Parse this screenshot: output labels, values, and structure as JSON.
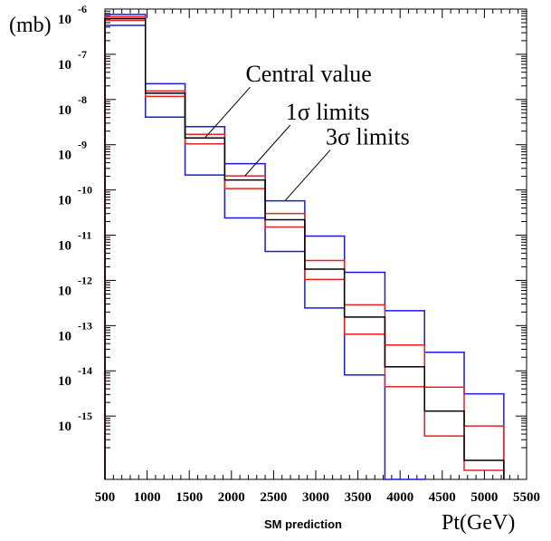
{
  "chart_data": {
    "type": "line",
    "subtype": "step-histogram",
    "title": "",
    "subtitle": "SM prediction",
    "xlabel": "Pt(GeV)",
    "ylabel": "(mb)",
    "xlim": [
      500,
      5500
    ],
    "ylim": [
      -16.4,
      -6
    ],
    "y_scale": "log10",
    "x_ticks": [
      500,
      1000,
      1500,
      2000,
      2500,
      3000,
      3500,
      4000,
      4500,
      5000,
      5500
    ],
    "y_ticks": [
      {
        "base": "10",
        "exp": "-6",
        "value": -6
      },
      {
        "base": "10",
        "exp": "-7",
        "value": -7
      },
      {
        "base": "10",
        "exp": "-8",
        "value": -8
      },
      {
        "base": "10",
        "exp": "-9",
        "value": -9
      },
      {
        "base": "10",
        "exp": "-10",
        "value": -10
      },
      {
        "base": "10",
        "exp": "-11",
        "value": -11
      },
      {
        "base": "10",
        "exp": "-12",
        "value": -12
      },
      {
        "base": "10",
        "exp": "-13",
        "value": -13
      },
      {
        "base": "10",
        "exp": "-14",
        "value": -14
      },
      {
        "base": "10",
        "exp": "-15",
        "value": -15
      }
    ],
    "bin_edges": [
      500,
      980,
      1450,
      1920,
      2400,
      2870,
      3340,
      3820,
      4290,
      4760,
      5230
    ],
    "series": [
      {
        "name": "Central value",
        "color": "#000000",
        "values": [
          -6.21,
          -7.86,
          -8.85,
          -9.78,
          -10.66,
          -11.75,
          -12.81,
          -13.91,
          -14.89,
          -15.98
        ]
      },
      {
        "name": "1σ limits",
        "color": "#e8201e",
        "upper": [
          -6.17,
          -7.81,
          -8.77,
          -9.69,
          -10.52,
          -11.56,
          -12.54,
          -13.43,
          -14.36,
          -15.22
        ],
        "lower": [
          -6.25,
          -7.93,
          -8.98,
          -9.97,
          -10.82,
          -11.98,
          -13.19,
          -14.35,
          -15.44,
          -16.2
        ]
      },
      {
        "name": "3σ limits",
        "color": "#1a1adc",
        "upper": [
          -6.12,
          -7.65,
          -8.6,
          -9.42,
          -10.24,
          -11.02,
          -11.82,
          -12.67,
          -13.59,
          -14.51
        ],
        "lower": [
          -6.36,
          -8.39,
          -9.67,
          -10.62,
          -11.36,
          -12.61,
          -14.09,
          -16.4,
          null,
          null
        ]
      }
    ],
    "annotations": [
      {
        "text": "Central value",
        "series": "Central value",
        "bin": 2
      },
      {
        "text": "1σ  limits",
        "series": "1σ limits",
        "bin": 3
      },
      {
        "text": "3σ  limits",
        "series": "3σ limits",
        "bin": 4
      }
    ],
    "grid": false,
    "legend": "none"
  }
}
